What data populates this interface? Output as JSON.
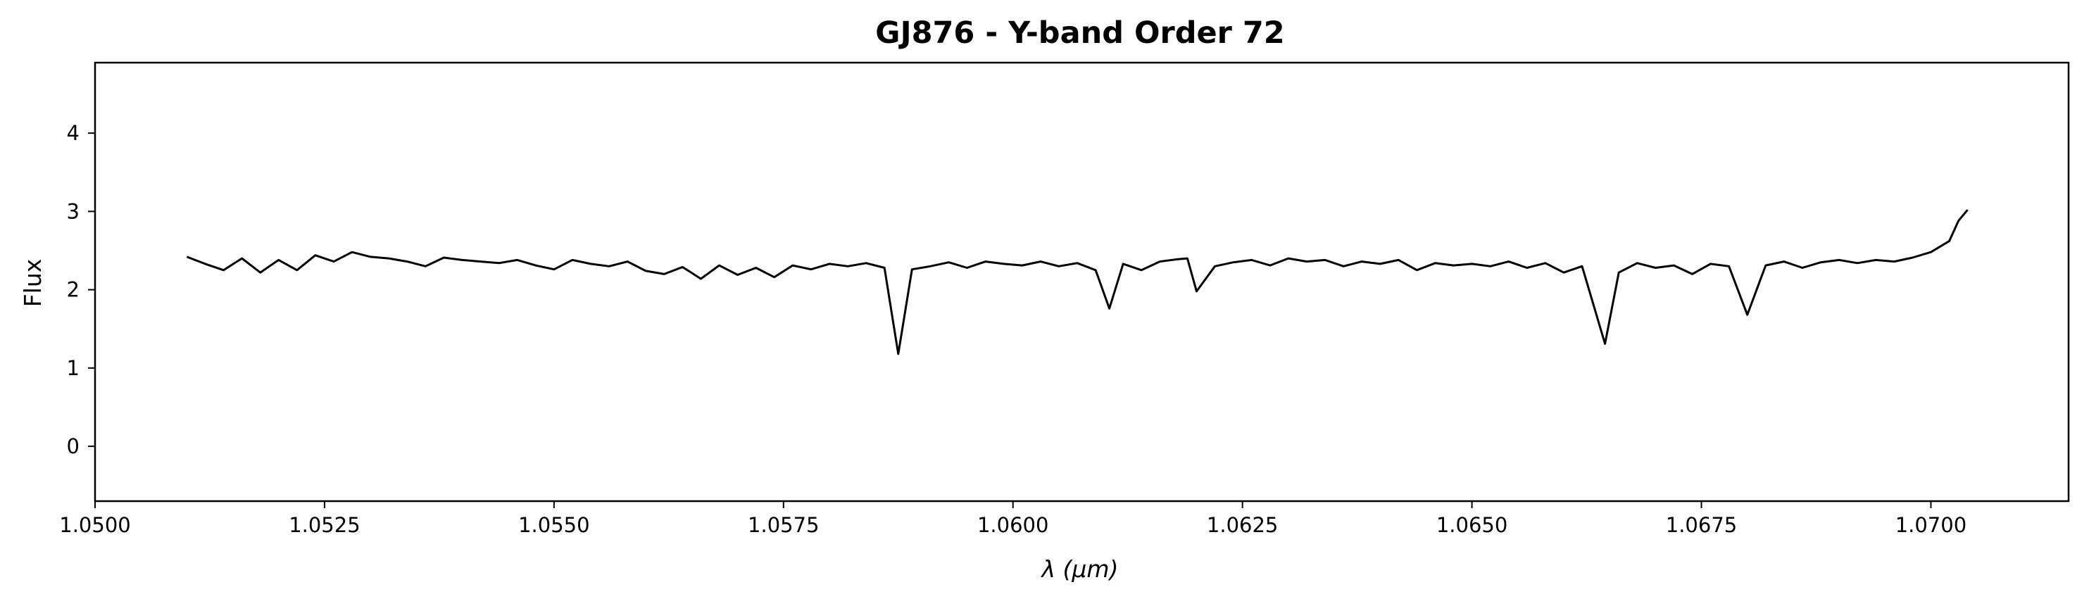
{
  "chart_data": {
    "type": "line",
    "title": "GJ876 - Y-band Order 72",
    "xlabel": "λ (μm)",
    "ylabel": "Flux",
    "xlim": [
      1.05,
      1.0715
    ],
    "ylim": [
      -0.7,
      4.9
    ],
    "x_ticks": [
      "1.0500",
      "1.0525",
      "1.0550",
      "1.0575",
      "1.0600",
      "1.0625",
      "1.0650",
      "1.0675",
      "1.0700"
    ],
    "y_ticks": [
      "0",
      "1",
      "2",
      "3",
      "4"
    ],
    "grid": false,
    "legend": "none",
    "line_color": "#000000",
    "series": [
      {
        "x": [
          1.051,
          1.0512,
          1.0514,
          1.0516,
          1.0518,
          1.052,
          1.0522,
          1.0524,
          1.0526,
          1.0528,
          1.053,
          1.0532,
          1.0534,
          1.0536,
          1.0538,
          1.054,
          1.0542,
          1.0544,
          1.0546,
          1.0548,
          1.055,
          1.0552,
          1.0554,
          1.0556,
          1.0558,
          1.056,
          1.0562,
          1.0564,
          1.0566,
          1.0568,
          1.057,
          1.0572,
          1.0574,
          1.0576,
          1.0578,
          1.058,
          1.0582,
          1.0584,
          1.0586,
          1.05875,
          1.0589,
          1.0591,
          1.0593,
          1.0595,
          1.0597,
          1.0599,
          1.0601,
          1.0603,
          1.0605,
          1.0607,
          1.0609,
          1.06105,
          1.0612,
          1.0614,
          1.0616,
          1.0618,
          1.0619,
          1.062,
          1.0622,
          1.0624,
          1.0626,
          1.0628,
          1.063,
          1.0632,
          1.0634,
          1.0636,
          1.0638,
          1.064,
          1.0642,
          1.0644,
          1.0646,
          1.0648,
          1.065,
          1.0652,
          1.0654,
          1.0656,
          1.0658,
          1.066,
          1.0662,
          1.06645,
          1.0666,
          1.0668,
          1.067,
          1.0672,
          1.0674,
          1.0676,
          1.0678,
          1.068,
          1.0682,
          1.0684,
          1.0686,
          1.0688,
          1.069,
          1.0692,
          1.0694,
          1.0696,
          1.0698,
          1.07,
          1.0702,
          1.0703,
          1.0704
        ],
        "y": [
          2.42,
          2.33,
          2.25,
          2.4,
          2.22,
          2.38,
          2.25,
          2.44,
          2.36,
          2.48,
          2.42,
          2.4,
          2.36,
          2.3,
          2.41,
          2.38,
          2.36,
          2.34,
          2.38,
          2.31,
          2.26,
          2.38,
          2.33,
          2.3,
          2.36,
          2.24,
          2.2,
          2.29,
          2.14,
          2.31,
          2.19,
          2.28,
          2.16,
          2.31,
          2.26,
          2.33,
          2.3,
          2.34,
          2.28,
          1.18,
          2.26,
          2.3,
          2.35,
          2.28,
          2.36,
          2.33,
          2.31,
          2.36,
          2.3,
          2.34,
          2.25,
          1.76,
          2.33,
          2.25,
          2.36,
          2.39,
          2.4,
          1.98,
          2.3,
          2.35,
          2.38,
          2.31,
          2.4,
          2.36,
          2.38,
          2.3,
          2.36,
          2.33,
          2.38,
          2.25,
          2.34,
          2.31,
          2.33,
          2.3,
          2.36,
          2.28,
          2.34,
          2.22,
          2.3,
          1.31,
          2.22,
          2.34,
          2.28,
          2.31,
          2.2,
          2.33,
          2.3,
          1.68,
          2.31,
          2.36,
          2.28,
          2.35,
          2.38,
          2.34,
          2.38,
          2.36,
          2.41,
          2.48,
          2.62,
          2.88,
          3.02
        ]
      }
    ]
  }
}
